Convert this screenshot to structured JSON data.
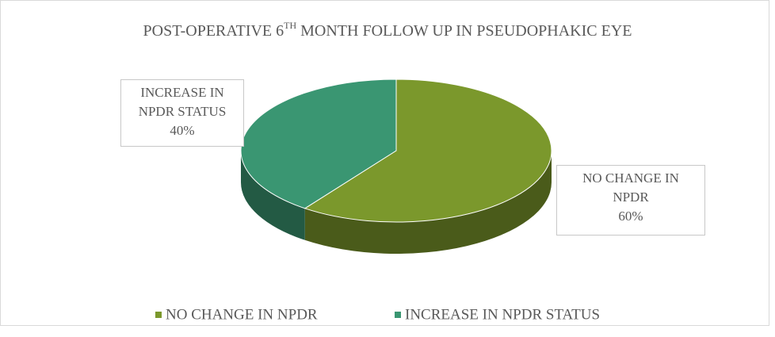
{
  "chart_data": {
    "type": "pie3d",
    "title": [
      "POST-OPERATIVE 6",
      "TH",
      " MONTH FOLLOW UP IN PSEUDOPHAKIC EYE"
    ],
    "categories": [
      "NO CHANGE IN NPDR",
      "INCREASE IN NPDR STATUS"
    ],
    "values": [
      60,
      40
    ],
    "value_labels": [
      "60%",
      "40%"
    ],
    "colors": [
      "#7b982c",
      "#3a9672"
    ],
    "legend": "bottom"
  }
}
